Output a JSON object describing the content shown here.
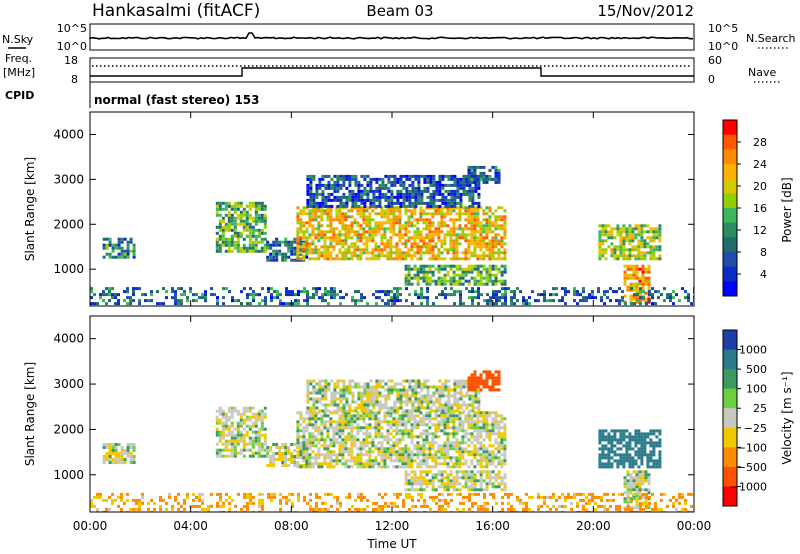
{
  "header": {
    "station": "Hankasalmi (fitACF)",
    "beam": "Beam 03",
    "date": "15/Nov/2012"
  },
  "top_panels": {
    "nsky": {
      "left_label": "N.Sky",
      "left_ticks": [
        "10^5",
        "10^0"
      ],
      "right_label": "N.Search",
      "right_ticks": [
        "10^5",
        "10^0"
      ]
    },
    "freq": {
      "left_label_1": "Freq.",
      "left_label_2": "[MHz]",
      "left_ticks": [
        "18",
        "8"
      ],
      "right_label": "Nave",
      "right_ticks": [
        "60",
        "0"
      ]
    },
    "cpid": {
      "label": "CPID",
      "value": "normal (fast stereo) 153"
    }
  },
  "colorbars": {
    "power": {
      "label": "Power [dB]",
      "ticks": [
        "28",
        "24",
        "20",
        "16",
        "12",
        "8",
        "4"
      ],
      "colors": [
        "#ff0000",
        "#ff5a00",
        "#ff8a00",
        "#ffb000",
        "#d8c800",
        "#90d000",
        "#3cb85a",
        "#2a8c60",
        "#1f6e6a",
        "#1f4ea8",
        "#0c2cc8",
        "#0000ff"
      ]
    },
    "velocity": {
      "label": "Velocity [m s⁻¹]",
      "ticks": [
        "1000",
        "500",
        "100",
        "25",
        "−25",
        "−100",
        "−500",
        "−1000"
      ],
      "colors": [
        "#1f3fa8",
        "#2a7a8a",
        "#3a9a60",
        "#6ad040",
        "#c8c8c0",
        "#f0c800",
        "#ff8c00",
        "#ff5000",
        "#ff0000"
      ]
    }
  },
  "chart_data": [
    {
      "type": "heatmap",
      "panel": "power",
      "ylabel": "Slant Range [km]",
      "xlabel": "Time UT",
      "x_ticks": [
        "00:00",
        "04:00",
        "08:00",
        "12:00",
        "16:00",
        "20:00",
        "00:00"
      ],
      "y_ticks": [
        "4000",
        "3000",
        "2000",
        "1000"
      ],
      "xlim": [
        0,
        24
      ],
      "ylim": [
        180,
        4500
      ],
      "echo_regions": [
        {
          "t0": 0.5,
          "t1": 1.7,
          "r0": 1250,
          "r1": 1700,
          "power": 10
        },
        {
          "t0": 5.0,
          "t1": 7.0,
          "r0": 1400,
          "r1": 2500,
          "power": 14
        },
        {
          "t0": 7.0,
          "t1": 8.6,
          "r0": 1200,
          "r1": 1700,
          "power": 8
        },
        {
          "t0": 8.2,
          "t1": 16.5,
          "r0": 1200,
          "r1": 2400,
          "power": 22
        },
        {
          "t0": 8.6,
          "t1": 15.5,
          "r0": 2400,
          "r1": 3100,
          "power": 6
        },
        {
          "t0": 15.0,
          "t1": 16.2,
          "r0": 2900,
          "r1": 3300,
          "power": 8
        },
        {
          "t0": 12.5,
          "t1": 16.5,
          "r0": 650,
          "r1": 1100,
          "power": 14
        },
        {
          "t0": 20.2,
          "t1": 22.6,
          "r0": 1200,
          "r1": 2000,
          "power": 18
        },
        {
          "t0": 21.2,
          "t1": 22.2,
          "r0": 250,
          "r1": 1100,
          "power": 24
        },
        {
          "t0": 0.0,
          "t1": 24.0,
          "r0": 200,
          "r1": 600,
          "power": 8
        }
      ]
    },
    {
      "type": "heatmap",
      "panel": "velocity",
      "ylabel": "Slant Range [km]",
      "xlabel": "Time UT",
      "x_ticks": [
        "00:00",
        "04:00",
        "08:00",
        "12:00",
        "16:00",
        "20:00",
        "00:00"
      ],
      "y_ticks": [
        "4000",
        "3000",
        "2000",
        "1000"
      ],
      "xlim": [
        0,
        24
      ],
      "ylim": [
        180,
        4500
      ],
      "echo_regions": [
        {
          "t0": 0.5,
          "t1": 1.7,
          "r0": 1250,
          "r1": 1700,
          "velocity": 0
        },
        {
          "t0": 5.0,
          "t1": 7.0,
          "r0": 1400,
          "r1": 2500,
          "velocity": 0
        },
        {
          "t0": 7.0,
          "t1": 8.6,
          "r0": 1200,
          "r1": 1700,
          "velocity": 0
        },
        {
          "t0": 8.2,
          "t1": 16.5,
          "r0": 1200,
          "r1": 2400,
          "velocity": 0
        },
        {
          "t0": 8.6,
          "t1": 15.5,
          "r0": 2400,
          "r1": 3100,
          "velocity": 0
        },
        {
          "t0": 15.0,
          "t1": 16.2,
          "r0": 2900,
          "r1": 3300,
          "velocity": -300
        },
        {
          "t0": 12.5,
          "t1": 16.5,
          "r0": 650,
          "r1": 1100,
          "velocity": 0
        },
        {
          "t0": 20.2,
          "t1": 22.6,
          "r0": 1200,
          "r1": 2000,
          "velocity": 200
        },
        {
          "t0": 21.2,
          "t1": 22.2,
          "r0": 250,
          "r1": 1100,
          "velocity": 0
        },
        {
          "t0": 0.0,
          "t1": 24.0,
          "r0": 200,
          "r1": 600,
          "velocity": -80
        }
      ]
    }
  ]
}
